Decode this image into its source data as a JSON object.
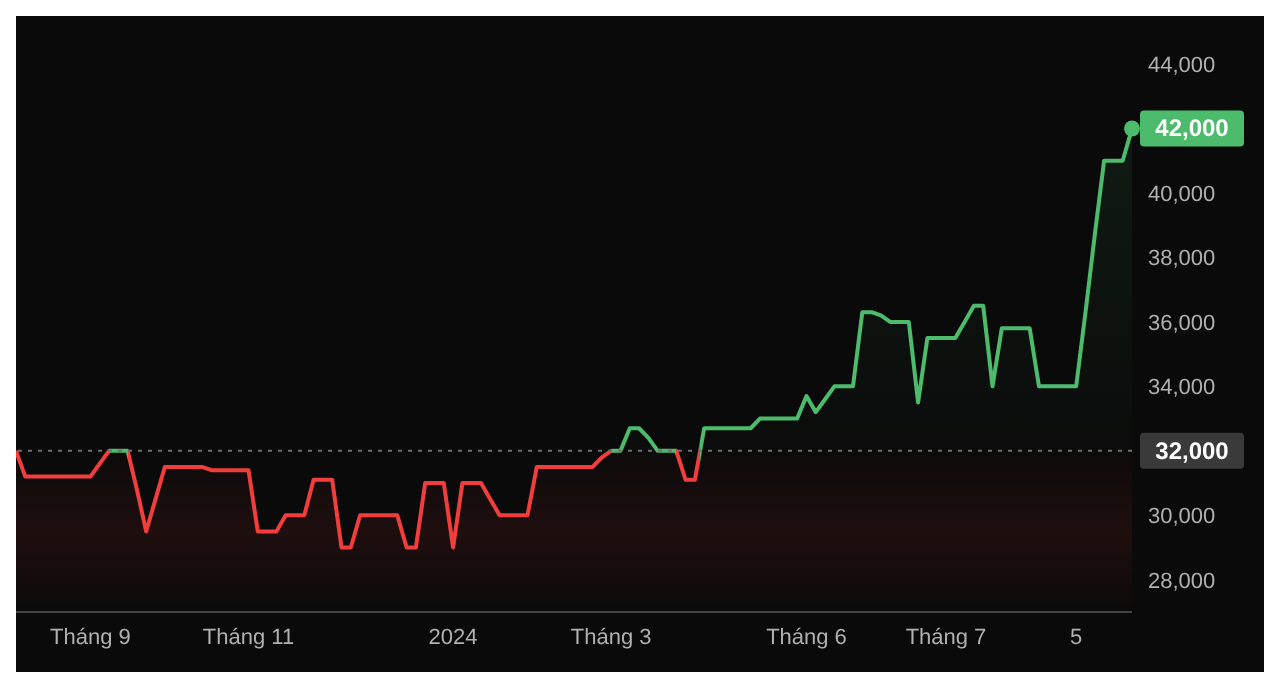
{
  "chart_data": {
    "type": "area",
    "categories": [
      null,
      null,
      null,
      null,
      null,
      null,
      null,
      null,
      "Tháng 9",
      null,
      null,
      null,
      null,
      null,
      null,
      null,
      null,
      null,
      null,
      null,
      null,
      null,
      null,
      null,
      null,
      "Tháng 11",
      null,
      null,
      null,
      null,
      null,
      null,
      null,
      null,
      null,
      null,
      null,
      null,
      null,
      null,
      null,
      null,
      null,
      null,
      null,
      null,
      null,
      "2024",
      null,
      null,
      null,
      null,
      null,
      null,
      null,
      null,
      null,
      null,
      null,
      null,
      null,
      null,
      null,
      null,
      "Tháng 3",
      null,
      null,
      null,
      null,
      null,
      null,
      null,
      null,
      null,
      null,
      null,
      null,
      null,
      null,
      null,
      null,
      null,
      null,
      null,
      null,
      "Tháng 6",
      null,
      null,
      null,
      null,
      null,
      null,
      null,
      null,
      null,
      null,
      null,
      null,
      null,
      null,
      "Tháng 7",
      null,
      null,
      null,
      null,
      null,
      null,
      null,
      null,
      null,
      null,
      null,
      null,
      null,
      "5",
      null,
      null,
      null,
      null,
      null,
      null
    ],
    "series": [
      {
        "values": [
          32000,
          31200,
          31200,
          31200,
          31200,
          31200,
          31200,
          31200,
          31200,
          31600,
          32000,
          32000,
          32000,
          30800,
          29500,
          30500,
          31500,
          31500,
          31500,
          31500,
          31500,
          31400,
          31400,
          31400,
          31400,
          31400,
          29500,
          29500,
          29500,
          30000,
          30000,
          30000,
          31100,
          31100,
          31100,
          29000,
          29000,
          30000,
          30000,
          30000,
          30000,
          30000,
          29000,
          29000,
          31000,
          31000,
          31000,
          29000,
          31000,
          31000,
          31000,
          30500,
          30000,
          30000,
          30000,
          30000,
          31500,
          31500,
          31500,
          31500,
          31500,
          31500,
          31500,
          31800,
          32000,
          32000,
          32700,
          32700,
          32400,
          32000,
          32000,
          32000,
          31100,
          31100,
          32700,
          32700,
          32700,
          32700,
          32700,
          32700,
          33000,
          33000,
          33000,
          33000,
          33000,
          33700,
          33200,
          33600,
          34000,
          34000,
          34000,
          36300,
          36300,
          36200,
          36000,
          36000,
          36000,
          33500,
          35500,
          35500,
          35500,
          35500,
          36000,
          36500,
          36500,
          34000,
          35800,
          35800,
          35800,
          35800,
          34000,
          34000,
          34000,
          34000,
          34000,
          36300,
          38700,
          41000,
          41000,
          41000,
          42000
        ],
        "colors": [
          "#f23d3d",
          "#f23d3d",
          "#f23d3d",
          "#f23d3d",
          "#f23d3d",
          "#f23d3d",
          "#f23d3d",
          "#f23d3d",
          "#f23d3d",
          "#f23d3d",
          "#4cbb6c",
          "#4cbb6c",
          "#4cbb6c",
          "#f23d3d",
          "#f23d3d",
          "#f23d3d",
          "#f23d3d",
          "#f23d3d",
          "#f23d3d",
          "#f23d3d",
          "#f23d3d",
          "#f23d3d",
          "#f23d3d",
          "#f23d3d",
          "#f23d3d",
          "#f23d3d",
          "#f23d3d",
          "#f23d3d",
          "#f23d3d",
          "#f23d3d",
          "#f23d3d",
          "#f23d3d",
          "#f23d3d",
          "#f23d3d",
          "#f23d3d",
          "#f23d3d",
          "#f23d3d",
          "#f23d3d",
          "#f23d3d",
          "#f23d3d",
          "#f23d3d",
          "#f23d3d",
          "#f23d3d",
          "#f23d3d",
          "#f23d3d",
          "#f23d3d",
          "#f23d3d",
          "#f23d3d",
          "#f23d3d",
          "#f23d3d",
          "#f23d3d",
          "#f23d3d",
          "#f23d3d",
          "#f23d3d",
          "#f23d3d",
          "#f23d3d",
          "#f23d3d",
          "#f23d3d",
          "#f23d3d",
          "#f23d3d",
          "#f23d3d",
          "#f23d3d",
          "#f23d3d",
          "#f23d3d",
          "#4cbb6c",
          "#4cbb6c",
          "#4cbb6c",
          "#4cbb6c",
          "#4cbb6c",
          "#4cbb6c",
          "#4cbb6c",
          "#4cbb6c",
          "#f23d3d",
          "#f23d3d",
          "#4cbb6c",
          "#4cbb6c",
          "#4cbb6c",
          "#4cbb6c",
          "#4cbb6c",
          "#4cbb6c",
          "#4cbb6c",
          "#4cbb6c",
          "#4cbb6c",
          "#4cbb6c",
          "#4cbb6c",
          "#4cbb6c",
          "#4cbb6c",
          "#4cbb6c",
          "#4cbb6c",
          "#4cbb6c",
          "#4cbb6c",
          "#4cbb6c",
          "#4cbb6c",
          "#4cbb6c",
          "#4cbb6c",
          "#4cbb6c",
          "#4cbb6c",
          "#4cbb6c",
          "#4cbb6c",
          "#4cbb6c",
          "#4cbb6c",
          "#4cbb6c",
          "#4cbb6c",
          "#4cbb6c",
          "#4cbb6c",
          "#4cbb6c",
          "#4cbb6c",
          "#4cbb6c",
          "#4cbb6c",
          "#4cbb6c",
          "#4cbb6c",
          "#4cbb6c",
          "#4cbb6c",
          "#4cbb6c",
          "#4cbb6c",
          "#4cbb6c",
          "#4cbb6c",
          "#4cbb6c",
          "#4cbb6c",
          "#4cbb6c",
          "#4cbb6c"
        ]
      }
    ],
    "ylim": [
      27000,
      44000
    ],
    "yticks": [
      {
        "value": 28000,
        "label": "28,000"
      },
      {
        "value": 30000,
        "label": "30,000"
      },
      {
        "value": 34000,
        "label": "34,000"
      },
      {
        "value": 36000,
        "label": "36,000"
      },
      {
        "value": 38000,
        "label": "38,000"
      },
      {
        "value": 40000,
        "label": "40,000"
      },
      {
        "value": 44000,
        "label": "44,000"
      }
    ],
    "ref_lines": [
      {
        "axis": "y",
        "value": 32000,
        "label": "32,000",
        "color": "#6e6e6e",
        "line_style": "dotted"
      }
    ],
    "annotations": [
      "42,000"
    ]
  }
}
